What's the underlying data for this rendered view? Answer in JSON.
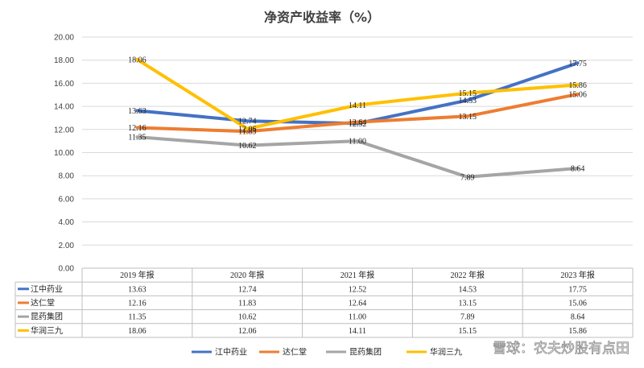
{
  "chart_data": {
    "type": "line",
    "title": "净资产收益率（%）",
    "categories": [
      "2019 年报",
      "2020 年报",
      "2021 年报",
      "2022 年报",
      "2023 年报"
    ],
    "ylim": [
      0,
      20
    ],
    "yticks": [
      "0.00",
      "2.00",
      "4.00",
      "6.00",
      "8.00",
      "10.00",
      "12.00",
      "14.00",
      "16.00",
      "18.00",
      "20.00"
    ],
    "grid": true,
    "legend_position": "bottom",
    "data_table": true,
    "series": [
      {
        "name": "江中药业",
        "color": "#4472C4",
        "values": [
          13.63,
          12.74,
          12.52,
          14.53,
          17.75
        ],
        "labels": [
          "13.63",
          "12.74",
          "12.52",
          "14.53",
          "17.75"
        ]
      },
      {
        "name": "达仁堂",
        "color": "#ED7D31",
        "values": [
          12.16,
          11.83,
          12.64,
          13.15,
          15.06
        ],
        "labels": [
          "12.16",
          "11.83",
          "12.64",
          "13.15",
          "15.06"
        ]
      },
      {
        "name": "昆药集团",
        "color": "#A5A5A5",
        "values": [
          11.35,
          10.62,
          11.0,
          7.89,
          8.64
        ],
        "labels": [
          "11.35",
          "10.62",
          "11.00",
          "7.89",
          "8.64"
        ]
      },
      {
        "name": "华润三九",
        "color": "#FFC000",
        "values": [
          18.06,
          12.06,
          14.11,
          15.15,
          15.86
        ],
        "labels": [
          "18.06",
          "12.06",
          "14.11",
          "15.15",
          "15.86"
        ]
      }
    ]
  },
  "watermark": "雪球：农夫炒股有点田"
}
